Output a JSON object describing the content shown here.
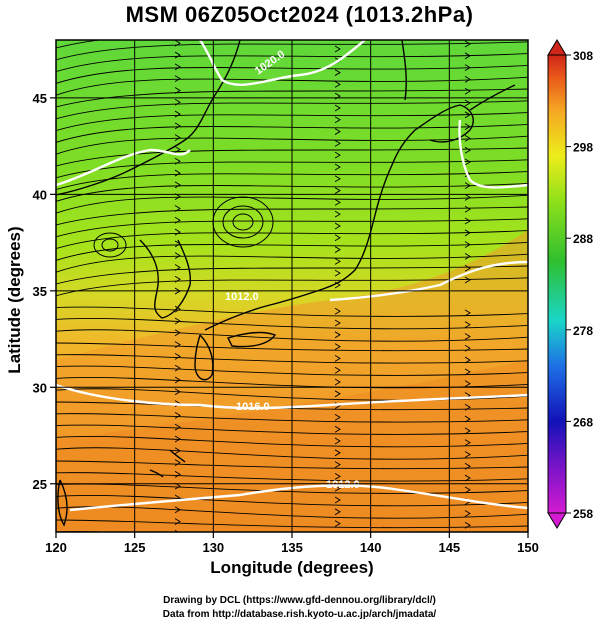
{
  "title": "MSM 06Z05Oct2024 (1013.2hPa)",
  "x_axis": {
    "label": "Longitude (degrees)",
    "ticks": [
      "120",
      "125",
      "130",
      "135",
      "140",
      "145",
      "150"
    ],
    "range": [
      120,
      150
    ]
  },
  "y_axis": {
    "label": "Latitude  (degrees)",
    "ticks": [
      "25",
      "30",
      "35",
      "40",
      "45"
    ],
    "range": [
      22.5,
      48
    ]
  },
  "colorbar": {
    "ticks": [
      "308",
      "298",
      "288",
      "278",
      "268",
      "258"
    ],
    "range": [
      258,
      308
    ],
    "colors": [
      "#d51bd1",
      "#1212b8",
      "#1e6fe6",
      "#1ad6c8",
      "#2fbf2f",
      "#8ee01a",
      "#eded1a",
      "#f5a623",
      "#ea5a1a",
      "#d0251a"
    ]
  },
  "contour_labels": [
    "1012.0",
    "1016.0",
    "1020.0",
    "1012.0"
  ],
  "credits": {
    "line1": "Drawing by DCL (https://www.gfd-dennou.org/library/dcl/)",
    "line2": "Data from http://database.rish.kyoto-u.ac.jp/arch/jmadata/"
  }
}
